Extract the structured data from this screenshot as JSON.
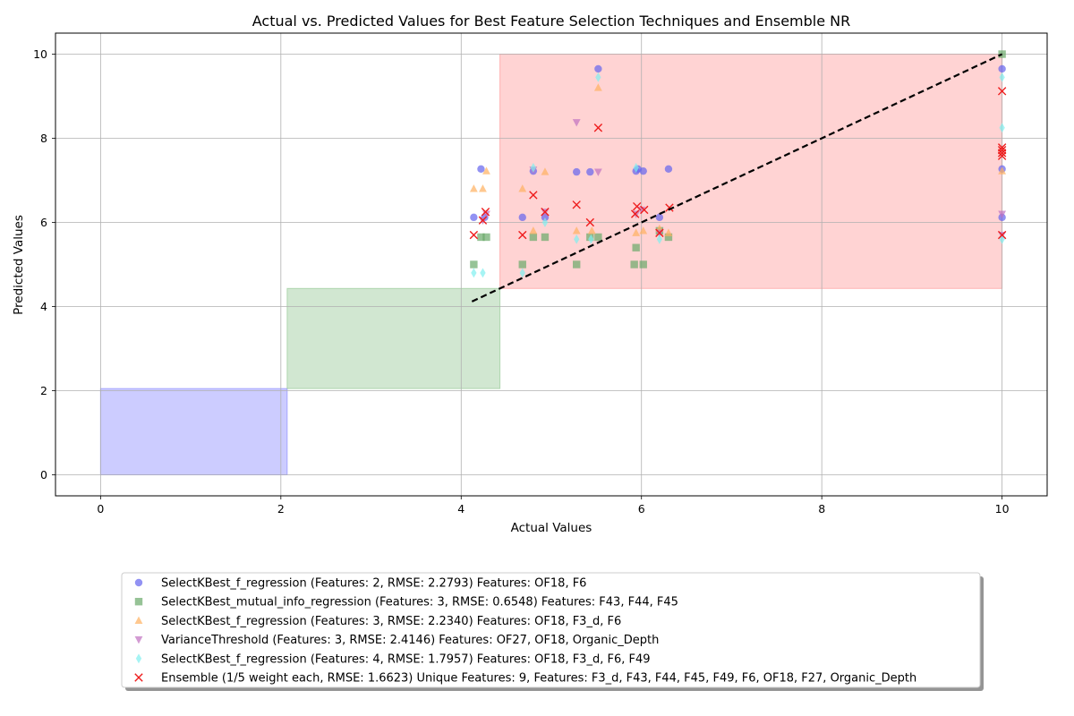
{
  "chart_data": {
    "type": "scatter",
    "title": "Actual vs. Predicted Values for Best Feature Selection Techniques and Ensemble NR",
    "xlabel": "Actual Values",
    "ylabel": "Predicted Values",
    "xlim": [
      -0.5,
      10.5
    ],
    "ylim": [
      -0.5,
      10.5
    ],
    "xticks": [
      0,
      2,
      4,
      6,
      8,
      10
    ],
    "yticks": [
      0,
      2,
      4,
      6,
      8,
      10
    ],
    "xtick_labels": [
      "0",
      "2",
      "4",
      "6",
      "8",
      "10"
    ],
    "ytick_labels": [
      "0",
      "2",
      "4",
      "6",
      "8",
      "10"
    ],
    "grid": true,
    "legend_position": "below",
    "regions": [
      {
        "x": [
          0,
          2.07
        ],
        "y": [
          0,
          2.05
        ],
        "color": "#8080ff"
      },
      {
        "x": [
          2.07,
          4.43
        ],
        "y": [
          2.05,
          4.43
        ],
        "color": "#8cc48c"
      },
      {
        "x": [
          4.43,
          10
        ],
        "y": [
          4.43,
          10
        ],
        "color": "#ff9090"
      }
    ],
    "reference_line": {
      "x": [
        4.12,
        10
      ],
      "y": [
        4.12,
        10
      ],
      "color": "#000000",
      "style": "dashed"
    },
    "series": [
      {
        "name": "SelectKBest_f_regression (Features: 2, RMSE: 2.2793) Features: OF18, F6",
        "marker": "circle",
        "color": "#6464ee",
        "x": [
          4.14,
          4.22,
          4.26,
          4.68,
          4.8,
          4.93,
          5.28,
          5.43,
          5.52,
          5.94,
          5.96,
          6.02,
          6.2,
          6.3,
          10,
          10,
          10
        ],
        "y": [
          6.12,
          7.27,
          6.12,
          6.12,
          7.22,
          6.12,
          7.2,
          7.2,
          9.65,
          7.22,
          7.27,
          7.22,
          6.12,
          7.27,
          9.65,
          7.27,
          6.12
        ]
      },
      {
        "name": "SelectKBest_mutual_info_regression (Features: 3, RMSE: 0.6548) Features: F43, F44, F45",
        "marker": "square",
        "color": "#6aaa6a",
        "x": [
          4.14,
          4.22,
          4.28,
          4.68,
          4.8,
          4.93,
          5.28,
          5.43,
          5.52,
          5.92,
          5.94,
          6.02,
          6.2,
          6.3,
          10
        ],
        "y": [
          5.0,
          5.65,
          5.65,
          5.0,
          5.65,
          5.65,
          5.0,
          5.65,
          5.65,
          5.0,
          5.4,
          5.0,
          5.8,
          5.65,
          10.0
        ]
      },
      {
        "name": "SelectKBest_f_regression (Features: 3, RMSE: 2.2340) Features: OF18, F3_d, F6",
        "marker": "triangle-up",
        "color": "#ffb060",
        "x": [
          4.14,
          4.24,
          4.28,
          4.68,
          4.8,
          4.93,
          5.28,
          5.45,
          5.52,
          5.94,
          6.02,
          6.2,
          6.3,
          10
        ],
        "y": [
          6.8,
          6.8,
          7.22,
          6.8,
          5.8,
          7.2,
          5.8,
          5.8,
          9.2,
          5.75,
          5.8,
          5.85,
          5.75,
          7.22
        ]
      },
      {
        "name": "VarianceThreshold (Features: 3, RMSE: 2.4146) Features: OF27, OF18, Organic_Depth",
        "marker": "triangle-down",
        "color": "#c070c0",
        "x": [
          4.24,
          4.28,
          4.8,
          4.93,
          5.28,
          5.52,
          5.94,
          6.0,
          6.2,
          10,
          10
        ],
        "y": [
          6.05,
          6.2,
          7.25,
          6.25,
          8.38,
          7.2,
          6.2,
          6.3,
          5.75,
          6.2,
          5.7
        ]
      },
      {
        "name": "SelectKBest_f_regression (Features: 4, RMSE: 1.7957) Features: OF18, F3_d, F6, F49",
        "marker": "diamond",
        "color": "#80f0f0",
        "x": [
          4.14,
          4.24,
          4.68,
          4.8,
          4.93,
          5.28,
          5.44,
          5.52,
          5.94,
          6.2,
          10,
          10,
          10
        ],
        "y": [
          4.8,
          4.8,
          4.8,
          7.3,
          6.0,
          5.6,
          5.6,
          9.45,
          7.3,
          5.6,
          9.45,
          8.25,
          5.6
        ]
      },
      {
        "name": "Ensemble (1/5 weight each, RMSE: 1.6623) Unique Features: 9, Features: F3_d, F43, F44, F45, F49, F6, OF18, F27, Organic_Depth",
        "marker": "x",
        "color": "#ee1c1c",
        "x": [
          4.14,
          4.24,
          4.27,
          4.68,
          4.8,
          4.93,
          5.28,
          5.43,
          5.52,
          5.93,
          5.95,
          6.03,
          6.2,
          6.31,
          10,
          10,
          10,
          10,
          10,
          10
        ],
        "y": [
          5.7,
          6.05,
          6.25,
          5.7,
          6.65,
          6.25,
          6.42,
          6.0,
          8.25,
          6.2,
          6.38,
          6.3,
          5.75,
          6.35,
          9.12,
          7.78,
          7.72,
          7.65,
          7.58,
          5.7
        ]
      }
    ]
  }
}
